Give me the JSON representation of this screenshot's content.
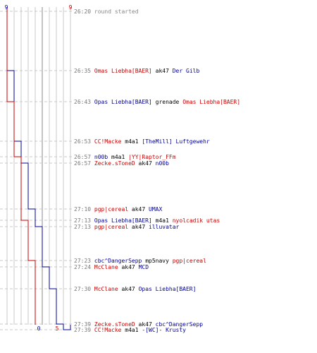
{
  "colors": {
    "blue_team": "#000099",
    "red_team": "#cc0000",
    "time": "#777777",
    "grid": "#c8c8c8",
    "dash": "#c8c8c8"
  },
  "counts": {
    "blue_start": "9",
    "red_start": "9",
    "blue_end": "0",
    "red_end": "5"
  },
  "events": [
    {
      "time": "26:20",
      "start": "round started",
      "weapon": "",
      "victim": "",
      "sc": "info",
      "vc": ""
    },
    {
      "time": "26:35",
      "start": "Omas Liebha[BAER]",
      "weapon": "ak47",
      "victim": "Der Gilb",
      "sc": "red",
      "vc": "blue"
    },
    {
      "time": "26:43",
      "start": "Opas Liebha[BAER]",
      "weapon": "grenade",
      "victim": "Omas Liebha[BAER]",
      "sc": "blue",
      "vc": "red"
    },
    {
      "time": "26:53",
      "start": "CC!Macke",
      "weapon": "m4a1",
      "victim": "[TheMill] Luftgewehr",
      "sc": "red",
      "vc": "blue"
    },
    {
      "time": "26:57",
      "start": "n00b",
      "weapon": "m4a1",
      "victim": "|YY|Raptor_FFm",
      "sc": "blue",
      "vc": "red"
    },
    {
      "time": "26:57",
      "start": "Zecke.sToneD",
      "weapon": "ak47",
      "victim": "n00b",
      "sc": "red",
      "vc": "blue"
    },
    {
      "time": "27:10",
      "start": "pgp|cereal",
      "weapon": "ak47",
      "victim": "UMAX",
      "sc": "red",
      "vc": "blue"
    },
    {
      "time": "27:13",
      "start": "Opas Liebha[BAER]",
      "weapon": "m4a1",
      "victim": "nyolcadik utas",
      "sc": "blue",
      "vc": "red"
    },
    {
      "time": "27:13",
      "start": "pgp|cereal",
      "weapon": "ak47",
      "victim": "illuvatar",
      "sc": "red",
      "vc": "blue"
    },
    {
      "time": "27:23",
      "start": "cbc^DangerSepp",
      "weapon": "mp5navy",
      "victim": "pgp|cereal",
      "sc": "blue",
      "vc": "red"
    },
    {
      "time": "27:24",
      "start": "McClane",
      "weapon": "ak47",
      "victim": "MCD",
      "sc": "red",
      "vc": "blue"
    },
    {
      "time": "27:30",
      "start": "McClane",
      "weapon": "ak47",
      "victim": "Opas Liebha[BAER]",
      "sc": "red",
      "vc": "blue"
    },
    {
      "time": "27:39",
      "start": "Zecke.sToneD",
      "weapon": "ak47",
      "victim": "cbc^DangerSepp",
      "sc": "red",
      "vc": "blue"
    },
    {
      "time": "27:39",
      "start": "CC!Macke",
      "weapon": "m4a1",
      "victim": "-[WC]- Krusty",
      "sc": "red",
      "vc": "blue"
    }
  ],
  "chart_data": {
    "type": "line",
    "x": [
      "26:20",
      "26:35",
      "26:43",
      "26:53",
      "26:57",
      "26:57",
      "27:10",
      "27:13",
      "27:13",
      "27:23",
      "27:24",
      "27:30",
      "27:39",
      "27:39"
    ],
    "series": [
      {
        "values": [
          9,
          8,
          8,
          7,
          7,
          6,
          5,
          5,
          4,
          4,
          3,
          2,
          1,
          0
        ]
      },
      {
        "values": [
          9,
          9,
          8,
          8,
          7,
          7,
          7,
          6,
          6,
          5,
          5,
          5,
          5,
          5
        ]
      }
    ],
    "ylim": [
      0,
      9
    ],
    "grid": true
  }
}
